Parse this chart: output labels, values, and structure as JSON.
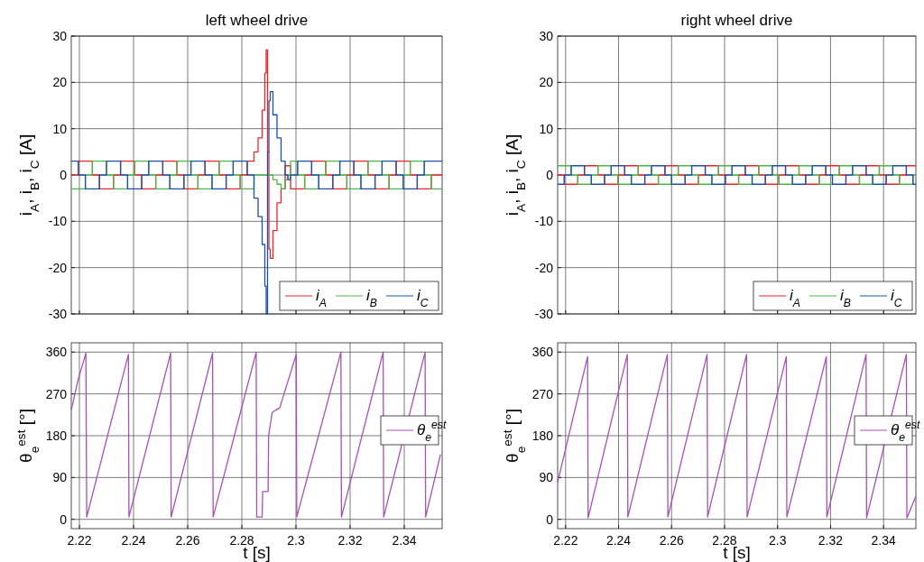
{
  "chart_data": [
    {
      "type": "step",
      "title": "left wheel drive",
      "ylabel": "i$_{A}$, i$_{B}$, i$_{C}$ [A]",
      "xlim": [
        2.217,
        2.354
      ],
      "xticks": [
        2.22,
        2.24,
        2.26,
        2.28,
        2.3,
        2.32,
        2.34
      ],
      "ylim": [
        -30,
        30
      ],
      "yticks": [
        -30,
        -20,
        -10,
        0,
        10,
        20,
        30
      ],
      "grid": true,
      "legend": "bottom right",
      "tick_labels": "y",
      "x": [
        2.217,
        2.2196,
        2.2222,
        2.2248,
        2.2274,
        2.23,
        2.2326,
        2.2352,
        2.2378,
        2.2404,
        2.243,
        2.2456,
        2.2482,
        2.2508,
        2.2534,
        2.256,
        2.2586,
        2.2612,
        2.2638,
        2.2664,
        2.269,
        2.2716,
        2.2742,
        2.2768,
        2.2794,
        2.282,
        2.2845,
        2.286,
        2.2875,
        2.2885,
        2.289,
        2.2895,
        2.29,
        2.2905,
        2.2915,
        2.293,
        2.2945,
        2.296,
        2.297,
        2.298,
        2.3006,
        2.3032,
        2.3058,
        2.3084,
        2.311,
        2.3136,
        2.3162,
        2.3188,
        2.3214,
        2.324,
        2.3266,
        2.3292,
        2.3318,
        2.3344,
        2.337,
        2.3396,
        2.3422,
        2.3448,
        2.3474,
        2.35,
        2.354
      ],
      "series": [
        {
          "name": "i$_{A}$",
          "color": "#e8262b",
          "values": [
            0,
            3,
            3,
            0,
            -3,
            -3,
            0,
            3,
            3,
            0,
            -3,
            -3,
            0,
            3,
            3,
            0,
            -3,
            -3,
            0,
            3,
            3,
            0,
            -3,
            -3,
            0,
            3,
            5,
            8,
            14,
            22,
            27,
            5,
            -16,
            -18,
            -12,
            -6,
            -3,
            2,
            2,
            -3,
            -3,
            0,
            3,
            3,
            0,
            -3,
            -3,
            0,
            3,
            3,
            0,
            -3,
            -3,
            0,
            3,
            3,
            0,
            -3,
            -3,
            0,
            0
          ]
        },
        {
          "name": "i$_{B}$",
          "color": "#4cb748",
          "values": [
            -3,
            -3,
            0,
            3,
            3,
            0,
            -3,
            -3,
            0,
            3,
            3,
            0,
            -3,
            -3,
            0,
            3,
            3,
            0,
            -3,
            -3,
            0,
            3,
            3,
            0,
            -3,
            -3,
            0,
            0,
            0,
            0,
            0,
            0,
            0,
            0,
            -1,
            -2,
            -3,
            -1,
            0,
            3,
            0,
            -3,
            -3,
            0,
            3,
            3,
            0,
            -3,
            -3,
            0,
            3,
            3,
            0,
            -3,
            -3,
            0,
            3,
            3,
            0,
            -3,
            -3
          ]
        },
        {
          "name": "i$_{C}$",
          "color": "#1f4fa8",
          "values": [
            3,
            0,
            -3,
            -3,
            0,
            3,
            3,
            0,
            -3,
            -3,
            0,
            3,
            3,
            0,
            -3,
            -3,
            0,
            3,
            3,
            0,
            -3,
            -3,
            0,
            3,
            3,
            0,
            -5,
            -9,
            -15,
            -24,
            -30,
            5,
            16,
            18,
            13,
            8,
            3,
            0,
            -1,
            0,
            3,
            3,
            0,
            -3,
            -3,
            0,
            3,
            3,
            0,
            -3,
            -3,
            0,
            3,
            3,
            0,
            -3,
            -3,
            0,
            3,
            3,
            3
          ]
        }
      ]
    },
    {
      "type": "step",
      "title": "right wheel drive",
      "ylabel": "i$_{A}$, i$_{B}$, i$_{C}$ [A]",
      "xlim": [
        2.217,
        2.3522
      ],
      "xticks": [
        2.22,
        2.24,
        2.26,
        2.28,
        2.3,
        2.32,
        2.34
      ],
      "ylim": [
        -30,
        30
      ],
      "yticks": [
        -30,
        -20,
        -10,
        0,
        10,
        20,
        30
      ],
      "grid": true,
      "legend": "bottom right",
      "tick_labels": "y",
      "x": [
        2.217,
        2.2195,
        2.2221,
        2.2246,
        2.2271,
        2.2297,
        2.2322,
        2.2347,
        2.2372,
        2.2398,
        2.2423,
        2.2448,
        2.2474,
        2.2499,
        2.2524,
        2.255,
        2.2575,
        2.26,
        2.2625,
        2.2651,
        2.2676,
        2.2701,
        2.2727,
        2.2752,
        2.2777,
        2.2803,
        2.2828,
        2.2853,
        2.2878,
        2.2904,
        2.2929,
        2.2954,
        2.298,
        2.3005,
        2.303,
        2.3056,
        2.3081,
        2.3106,
        2.3131,
        2.3157,
        2.3182,
        2.3207,
        2.3233,
        2.3258,
        2.3283,
        2.3309,
        2.3334,
        2.3359,
        2.3384,
        2.341,
        2.3435,
        2.346,
        2.3486,
        2.3511,
        2.3522
      ],
      "series": [
        {
          "name": "i$_{A}$",
          "color": "#e8262b",
          "values": [
            0,
            -2,
            -2,
            0,
            2,
            2,
            0,
            -2,
            -2,
            0,
            2,
            2,
            0,
            -2,
            -2,
            0,
            2,
            2,
            0,
            -2,
            -2,
            0,
            2,
            2,
            0,
            -2,
            -2,
            0,
            2,
            2,
            0,
            -2,
            -2,
            0,
            2,
            2,
            0,
            -2,
            -2,
            0,
            2,
            2,
            0,
            -2,
            -2,
            0,
            2,
            2,
            0,
            -2,
            -2,
            0,
            2,
            2,
            2
          ]
        },
        {
          "name": "i$_{B}$",
          "color": "#4cb748",
          "values": [
            2,
            2,
            0,
            -2,
            -2,
            0,
            2,
            2,
            0,
            -2,
            -2,
            0,
            2,
            2,
            0,
            -2,
            -2,
            0,
            2,
            2,
            0,
            -2,
            -2,
            0,
            2,
            2,
            0,
            -2,
            -2,
            0,
            2,
            2,
            0,
            -2,
            -2,
            0,
            2,
            2,
            0,
            -2,
            -2,
            0,
            2,
            2,
            0,
            -2,
            -2,
            0,
            2,
            2,
            0,
            -2,
            -2,
            0,
            0
          ]
        },
        {
          "name": "i$_{C}$",
          "color": "#1f4fa8",
          "values": [
            -2,
            0,
            2,
            2,
            0,
            -2,
            -2,
            0,
            2,
            2,
            0,
            -2,
            -2,
            0,
            2,
            2,
            0,
            -2,
            -2,
            0,
            2,
            2,
            0,
            -2,
            -2,
            0,
            2,
            2,
            0,
            -2,
            -2,
            0,
            2,
            2,
            0,
            -2,
            -2,
            0,
            2,
            2,
            0,
            -2,
            -2,
            0,
            2,
            2,
            0,
            -2,
            -2,
            0,
            2,
            2,
            0,
            -2,
            -2
          ]
        }
      ]
    },
    {
      "type": "line",
      "xlabel": "t [s]",
      "ylabel": "θ$_{e}$$^{est}$ [°]",
      "xlim": [
        2.217,
        2.354
      ],
      "xticks": [
        2.22,
        2.24,
        2.26,
        2.28,
        2.3,
        2.32,
        2.34
      ],
      "ylim": [
        -20,
        380
      ],
      "yticks": [
        0,
        90,
        180,
        270,
        360
      ],
      "grid": true,
      "legend": "right",
      "x": [
        2.217,
        2.2195,
        2.2224,
        2.2227,
        2.2381,
        2.2383,
        2.2537,
        2.2539,
        2.2692,
        2.2694,
        2.2853,
        2.2855,
        2.2875,
        2.2877,
        2.2897,
        2.2899,
        2.2912,
        2.2925,
        2.294,
        2.3001,
        2.3003,
        2.3166,
        2.3168,
        2.3322,
        2.3324,
        2.3477,
        2.3479,
        2.3534
      ],
      "series": [
        {
          "name": "θ$_{e}$$^{est}$",
          "color": "#a651b4",
          "values": [
            235,
            300,
            358,
            5,
            355,
            5,
            358,
            5,
            358,
            5,
            360,
            5,
            5,
            60,
            60,
            180,
            230,
            235,
            240,
            355,
            5,
            360,
            5,
            360,
            5,
            360,
            5,
            140
          ]
        }
      ]
    },
    {
      "type": "line",
      "xlabel": "t [s]",
      "ylabel": "θ$_{e}$$^{est}$ [°]",
      "xlim": [
        2.217,
        2.3522
      ],
      "xticks": [
        2.22,
        2.24,
        2.26,
        2.28,
        2.3,
        2.32,
        2.34
      ],
      "ylim": [
        -20,
        380
      ],
      "yticks": [
        0,
        90,
        180,
        270,
        360
      ],
      "grid": true,
      "legend": "right",
      "x": [
        2.217,
        2.2283,
        2.2285,
        2.2433,
        2.2435,
        2.2584,
        2.2586,
        2.2734,
        2.2736,
        2.2883,
        2.2885,
        2.3033,
        2.3035,
        2.3184,
        2.3186,
        2.3334,
        2.3336,
        2.3486,
        2.3488,
        2.3522
      ],
      "series": [
        {
          "name": "θ$_{e}$$^{est}$",
          "color": "#a651b4",
          "values": [
            80,
            350,
            3,
            355,
            5,
            355,
            5,
            355,
            5,
            355,
            5,
            350,
            5,
            350,
            5,
            355,
            3,
            355,
            3,
            50
          ]
        }
      ]
    }
  ]
}
